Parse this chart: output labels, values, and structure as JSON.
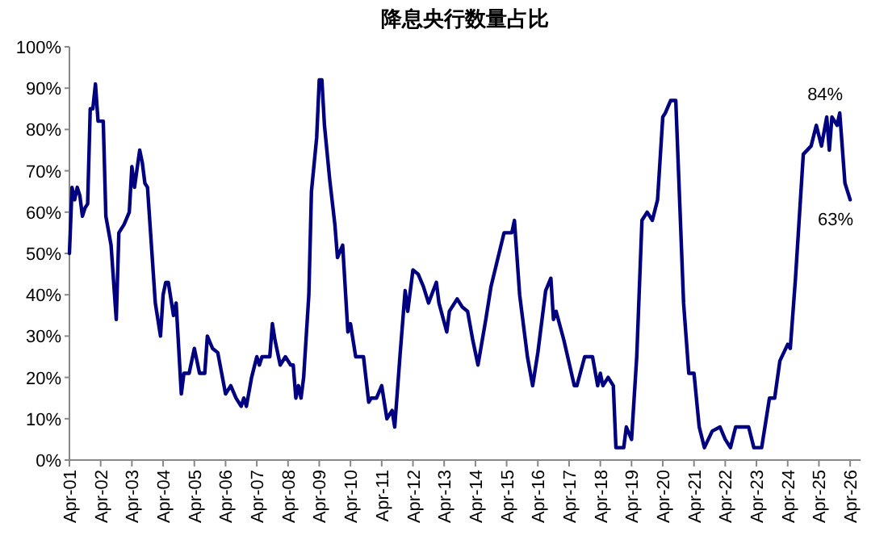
{
  "chart_data": {
    "type": "line",
    "title": "降息央行数量占比",
    "x": [
      "2001-04",
      "2001-05",
      "2001-06",
      "2001-07",
      "2001-08",
      "2001-09",
      "2001-10",
      "2001-11",
      "2001-12",
      "2002-01",
      "2002-02",
      "2002-03",
      "2002-05",
      "2002-06",
      "2002-08",
      "2002-10",
      "2002-11",
      "2003-01",
      "2003-03",
      "2003-04",
      "2003-05",
      "2003-07",
      "2003-08",
      "2003-09",
      "2003-10",
      "2004-01",
      "2004-03",
      "2004-04",
      "2004-05",
      "2004-06",
      "2004-08",
      "2004-09",
      "2004-11",
      "2004-12",
      "2005-02",
      "2005-04",
      "2005-06",
      "2005-08",
      "2005-09",
      "2005-11",
      "2006-01",
      "2006-04",
      "2006-06",
      "2006-08",
      "2006-10",
      "2006-11",
      "2006-12",
      "2007-02",
      "2007-04",
      "2007-05",
      "2007-06",
      "2007-09",
      "2007-10",
      "2007-11",
      "2008-01",
      "2008-03",
      "2008-05",
      "2008-06",
      "2008-07",
      "2008-08",
      "2008-09",
      "2008-10",
      "2008-12",
      "2009-01",
      "2009-03",
      "2009-04",
      "2009-05",
      "2009-06",
      "2009-08",
      "2009-10",
      "2009-11",
      "2010-01",
      "2010-03",
      "2010-04",
      "2010-06",
      "2010-09",
      "2010-11",
      "2010-12",
      "2011-02",
      "2011-04",
      "2011-06",
      "2011-08",
      "2011-09",
      "2011-11",
      "2012-01",
      "2012-02",
      "2012-04",
      "2012-06",
      "2012-08",
      "2012-10",
      "2013-01",
      "2013-02",
      "2013-05",
      "2013-06",
      "2013-09",
      "2013-11",
      "2014-01",
      "2014-03",
      "2014-05",
      "2014-08",
      "2014-10",
      "2015-03",
      "2015-06",
      "2015-07",
      "2015-09",
      "2015-12",
      "2016-02",
      "2016-04",
      "2016-07",
      "2016-09",
      "2016-10",
      "2016-11",
      "2017-02",
      "2017-06",
      "2017-07",
      "2017-10",
      "2018-01",
      "2018-03",
      "2018-04",
      "2018-05",
      "2018-07",
      "2018-09",
      "2018-10",
      "2019-01",
      "2019-02",
      "2019-04",
      "2019-06",
      "2019-08",
      "2019-10",
      "2019-12",
      "2020-02",
      "2020-04",
      "2020-05",
      "2020-07",
      "2020-09",
      "2020-12",
      "2021-02",
      "2021-04",
      "2021-06",
      "2021-08",
      "2021-11",
      "2022-02",
      "2022-04",
      "2022-06",
      "2022-08",
      "2023-01",
      "2023-03",
      "2023-06",
      "2023-09",
      "2023-11",
      "2024-01",
      "2024-04",
      "2024-05",
      "2024-07",
      "2024-10",
      "2025-01",
      "2025-03",
      "2025-05",
      "2025-07",
      "2025-08",
      "2025-09",
      "2025-11",
      "2025-12",
      "2026-02",
      "2026-04"
    ],
    "series": [
      {
        "color": "#000080",
        "values": [
          50,
          66,
          63,
          66,
          64,
          59,
          61,
          62,
          85,
          85,
          91,
          82,
          82,
          59,
          52,
          34,
          55,
          57,
          60,
          71,
          66,
          75,
          72,
          67,
          66,
          38,
          30,
          40,
          43,
          43,
          35,
          38,
          16,
          21,
          21,
          27,
          21,
          21,
          30,
          27,
          26,
          16,
          18,
          15,
          13,
          15,
          13,
          20,
          25,
          23,
          25,
          25,
          33,
          29,
          23,
          25,
          23,
          23,
          15,
          18,
          15,
          20,
          40,
          65,
          78,
          92,
          92,
          81,
          68,
          57,
          49,
          52,
          31,
          33,
          25,
          25,
          14,
          15,
          15,
          18,
          10,
          12,
          8,
          25,
          41,
          36,
          46,
          45,
          42,
          38,
          43,
          38,
          31,
          36,
          39,
          37,
          36,
          29,
          23,
          34,
          42,
          55,
          55,
          58,
          40,
          25,
          18,
          26,
          41,
          44,
          34,
          36,
          29,
          18,
          18,
          25,
          25,
          18,
          21,
          18,
          20,
          18,
          3,
          3,
          8,
          5,
          25,
          58,
          60,
          58,
          63,
          83,
          84,
          87,
          87,
          38,
          21,
          21,
          8,
          3,
          7,
          8,
          5,
          3,
          8,
          8,
          3,
          3,
          15,
          15,
          24,
          28,
          27,
          44,
          74,
          76,
          81,
          76,
          83,
          75,
          83,
          81,
          84,
          67,
          63
        ]
      }
    ],
    "xlim": [
      "2001-04",
      "2026-08"
    ],
    "xticks": [
      {
        "value": "2001-04",
        "label": "Apr-01"
      },
      {
        "value": "2002-04",
        "label": "Apr-02"
      },
      {
        "value": "2003-04",
        "label": "Apr-03"
      },
      {
        "value": "2004-04",
        "label": "Apr-04"
      },
      {
        "value": "2005-04",
        "label": "Apr-05"
      },
      {
        "value": "2006-04",
        "label": "Apr-06"
      },
      {
        "value": "2007-04",
        "label": "Apr-07"
      },
      {
        "value": "2008-04",
        "label": "Apr-08"
      },
      {
        "value": "2009-04",
        "label": "Apr-09"
      },
      {
        "value": "2010-04",
        "label": "Apr-10"
      },
      {
        "value": "2011-04",
        "label": "Apr-11"
      },
      {
        "value": "2012-04",
        "label": "Apr-12"
      },
      {
        "value": "2013-04",
        "label": "Apr-13"
      },
      {
        "value": "2014-04",
        "label": "Apr-14"
      },
      {
        "value": "2015-04",
        "label": "Apr-15"
      },
      {
        "value": "2016-04",
        "label": "Apr-16"
      },
      {
        "value": "2017-04",
        "label": "Apr-17"
      },
      {
        "value": "2018-04",
        "label": "Apr-18"
      },
      {
        "value": "2019-04",
        "label": "Apr-19"
      },
      {
        "value": "2020-04",
        "label": "Apr-20"
      },
      {
        "value": "2021-04",
        "label": "Apr-21"
      },
      {
        "value": "2022-04",
        "label": "Apr-22"
      },
      {
        "value": "2023-04",
        "label": "Apr-23"
      },
      {
        "value": "2024-04",
        "label": "Apr-24"
      },
      {
        "value": "2025-04",
        "label": "Apr-25"
      },
      {
        "value": "2026-04",
        "label": "Apr-26"
      }
    ],
    "ylim": [
      0,
      100
    ],
    "yticks": [
      {
        "value": 0,
        "label": "0%"
      },
      {
        "value": 10,
        "label": "10%"
      },
      {
        "value": 20,
        "label": "20%"
      },
      {
        "value": 30,
        "label": "30%"
      },
      {
        "value": 40,
        "label": "40%"
      },
      {
        "value": 50,
        "label": "50%"
      },
      {
        "value": 60,
        "label": "60%"
      },
      {
        "value": 70,
        "label": "70%"
      },
      {
        "value": 80,
        "label": "80%"
      },
      {
        "value": 90,
        "label": "90%"
      },
      {
        "value": 100,
        "label": "100%"
      }
    ],
    "grid": false,
    "annotations": [
      {
        "text": "84%",
        "x": "2025-12",
        "y": 84
      },
      {
        "text": "63%",
        "x": "2026-04",
        "y": 63
      }
    ]
  }
}
